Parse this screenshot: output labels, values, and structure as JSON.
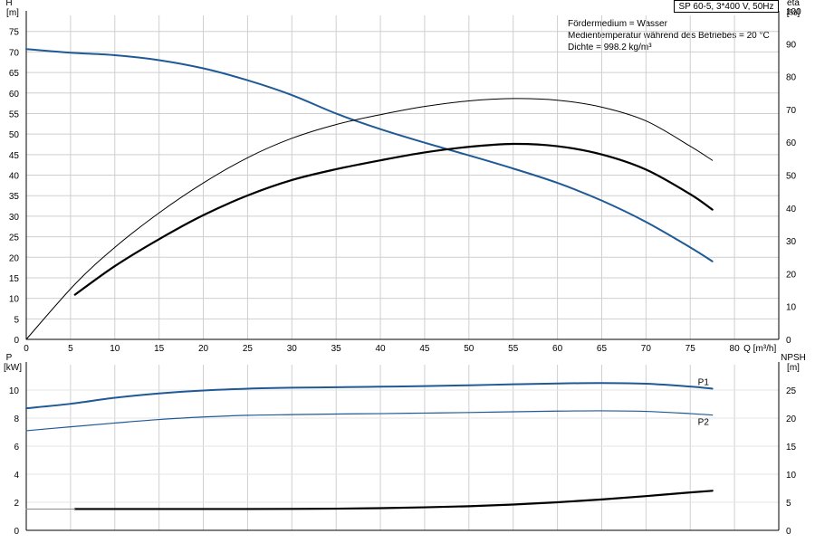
{
  "title": "SP 60-5, 3*400 V, 50Hz",
  "notes": [
    "Fördermedium = Wasser",
    "Medientemperatur während des Betriebes = 20 °C",
    "Dichte = 998.2 kg/m³"
  ],
  "colors": {
    "blue": "#1f5a96",
    "black": "#000000",
    "grid": "#cfcfcf"
  },
  "chart_data": [
    {
      "type": "line",
      "x_label": "Q [m³/h]",
      "y_label_left_line1": "H",
      "y_label_left_line2": "[m]",
      "y_label_right_line1": "eta",
      "y_label_right_line2": "[%]",
      "x_ticks": [
        0,
        5,
        10,
        15,
        20,
        25,
        30,
        35,
        40,
        45,
        50,
        55,
        60,
        65,
        70,
        75,
        80
      ],
      "y_left_ticks": [
        0,
        5,
        10,
        15,
        20,
        25,
        30,
        35,
        40,
        45,
        50,
        55,
        60,
        65,
        70,
        75
      ],
      "y_right_ticks": [
        0,
        10,
        20,
        30,
        40,
        50,
        60,
        70,
        80,
        90,
        100
      ],
      "xlim": [
        0,
        85
      ],
      "ylim_left": [
        0,
        80
      ],
      "ylim_right": [
        0,
        100
      ],
      "grid": true,
      "series": [
        {
          "id": "H",
          "axis": "left",
          "color": "blue",
          "width": 2,
          "x": [
            0,
            5,
            10,
            15,
            20,
            25,
            30,
            35,
            40,
            45,
            50,
            55,
            60,
            65,
            70,
            75,
            77.5
          ],
          "y": [
            70.7,
            69.8,
            69.2,
            68,
            66,
            63.1,
            59.5,
            55,
            51.2,
            47.9,
            44.8,
            41.6,
            38.1,
            33.8,
            28.6,
            22.4,
            19
          ]
        },
        {
          "id": "eta",
          "axis": "right",
          "color": "black",
          "width": 1,
          "x": [
            0,
            5.5,
            10,
            15,
            20,
            25,
            30,
            35,
            40,
            45,
            50,
            55,
            60,
            65,
            70,
            75,
            77.5
          ],
          "y": [
            0,
            16.8,
            28,
            38.5,
            47.6,
            55.3,
            61.2,
            65.4,
            68.4,
            70.9,
            72.6,
            73.3,
            72.8,
            70.7,
            66.5,
            58.8,
            54.5
          ]
        },
        {
          "id": "eta_total",
          "axis": "right",
          "color": "black",
          "width": 2.2,
          "x": [
            5.5,
            10,
            15,
            20,
            25,
            30,
            35,
            40,
            45,
            50,
            55,
            60,
            65,
            70,
            75,
            77.5
          ],
          "y": [
            13.6,
            22.3,
            30.5,
            37.8,
            43.8,
            48.5,
            51.8,
            54.5,
            56.9,
            58.6,
            59.5,
            58.8,
            56.3,
            51.7,
            44.2,
            39.5
          ]
        }
      ]
    },
    {
      "type": "line",
      "y_label_left_line1": "P",
      "y_label_left_line2": "[kW]",
      "y_label_right_line1": "NPSH",
      "y_label_right_line2": "[m]",
      "x_ticks": [
        0,
        5,
        10,
        15,
        20,
        25,
        30,
        35,
        40,
        45,
        50,
        55,
        60,
        65,
        70,
        75,
        80
      ],
      "y_left_ticks": [
        0,
        2,
        4,
        6,
        8,
        10
      ],
      "y_right_ticks": [
        0,
        5,
        10,
        15,
        20,
        25
      ],
      "xlim": [
        0,
        85
      ],
      "ylim_left": [
        0,
        12
      ],
      "ylim_right": [
        0,
        30
      ],
      "grid": true,
      "series": [
        {
          "id": "P1",
          "name": "P1",
          "axis": "left",
          "color": "blue",
          "width": 2,
          "x": [
            0,
            5,
            10,
            15,
            20,
            25,
            30,
            35,
            40,
            45,
            50,
            55,
            60,
            65,
            70,
            75,
            77.5
          ],
          "y": [
            8.7,
            9.02,
            9.45,
            9.76,
            9.97,
            10.1,
            10.17,
            10.2,
            10.24,
            10.28,
            10.34,
            10.41,
            10.47,
            10.5,
            10.45,
            10.25,
            10.1
          ]
        },
        {
          "id": "P1_ext",
          "axis": "left",
          "color": "blue",
          "width": 1,
          "x": [
            0,
            5
          ],
          "y": [
            8.7,
            9.02
          ]
        },
        {
          "id": "P2",
          "name": "P2",
          "axis": "left",
          "color": "blue",
          "width": 1.2,
          "x": [
            0,
            5,
            10,
            15,
            20,
            25,
            30,
            35,
            40,
            45,
            50,
            55,
            60,
            65,
            70,
            75,
            77.5
          ],
          "y": [
            7.1,
            7.38,
            7.65,
            7.9,
            8.08,
            8.2,
            8.25,
            8.29,
            8.32,
            8.36,
            8.4,
            8.45,
            8.5,
            8.52,
            8.48,
            8.32,
            8.22
          ]
        },
        {
          "id": "NPSH",
          "axis": "right",
          "color": "black",
          "width": 2.2,
          "x": [
            5.5,
            10,
            15,
            20,
            25,
            30,
            35,
            40,
            45,
            50,
            55,
            60,
            65,
            70,
            75,
            77.5
          ],
          "y": [
            3.8,
            3.8,
            3.8,
            3.8,
            3.8,
            3.82,
            3.86,
            3.95,
            4.1,
            4.3,
            4.6,
            5,
            5.5,
            6.1,
            6.75,
            7.05
          ]
        },
        {
          "id": "NPSH_ext",
          "axis": "right",
          "color": "grey",
          "width": 1,
          "x": [
            0,
            5.5
          ],
          "y": [
            3.8,
            3.8
          ]
        }
      ]
    }
  ]
}
